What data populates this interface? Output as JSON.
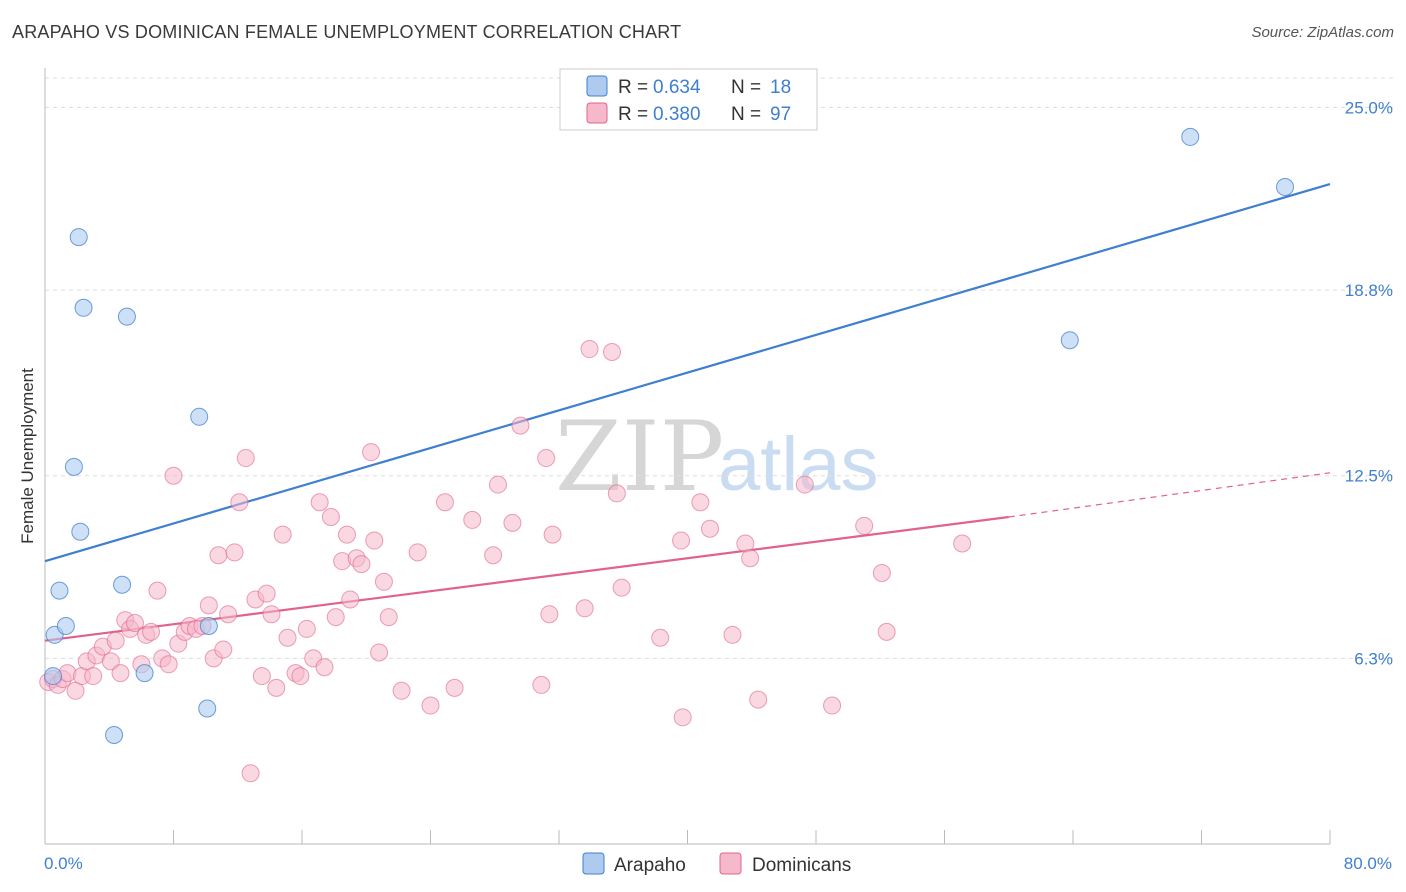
{
  "header": {
    "title": "ARAPAHO VS DOMINICAN FEMALE UNEMPLOYMENT CORRELATION CHART",
    "source": "Source: ZipAtlas.com"
  },
  "watermark": {
    "zip": "ZIP",
    "atlas": "atlas"
  },
  "legend": {
    "rows": [
      {
        "r_label": "R =",
        "r_value": "0.634",
        "n_label": "N =",
        "n_value": "18"
      },
      {
        "r_label": "R =",
        "r_value": "0.380",
        "n_label": "N =",
        "n_value": "97"
      }
    ]
  },
  "chart_data": {
    "type": "scatter",
    "title": "ARAPAHO VS DOMINICAN FEMALE UNEMPLOYMENT CORRELATION CHART",
    "xlabel": "",
    "ylabel": "Female Unemployment",
    "xlim": [
      0,
      80
    ],
    "ylim": [
      0,
      26
    ],
    "x_tick_labels": [
      "0.0%",
      "80.0%"
    ],
    "y_ticks": [
      6.3,
      12.5,
      18.8,
      25.0
    ],
    "y_tick_labels": [
      "6.3%",
      "12.5%",
      "18.8%",
      "25.0%"
    ],
    "colors": {
      "arapaho": "#3f7fd0",
      "arapaho_fill": "#aecbef",
      "dominicans": "#e0628d",
      "dominicans_fill": "#f6b8cb"
    },
    "series": [
      {
        "name": "Arapaho",
        "points": [
          [
            0.5,
            5.7
          ],
          [
            0.6,
            7.1
          ],
          [
            0.9,
            8.6
          ],
          [
            1.3,
            7.4
          ],
          [
            1.8,
            12.8
          ],
          [
            2.2,
            10.6
          ],
          [
            2.1,
            20.6
          ],
          [
            2.4,
            18.2
          ],
          [
            4.3,
            3.7
          ],
          [
            4.8,
            8.8
          ],
          [
            5.1,
            17.9
          ],
          [
            6.2,
            5.8
          ],
          [
            9.6,
            14.5
          ],
          [
            10.1,
            4.6
          ],
          [
            10.2,
            7.4
          ],
          [
            63.8,
            17.1
          ],
          [
            71.3,
            24.0
          ],
          [
            77.2,
            22.3
          ]
        ],
        "trend": {
          "x0": 0,
          "y0": 9.6,
          "x1": 80,
          "y1": 22.4
        }
      },
      {
        "name": "Dominicans",
        "points": [
          [
            0.2,
            5.5
          ],
          [
            0.5,
            5.6
          ],
          [
            0.8,
            5.4
          ],
          [
            1.1,
            5.6
          ],
          [
            1.4,
            5.8
          ],
          [
            1.9,
            5.2
          ],
          [
            2.3,
            5.7
          ],
          [
            2.6,
            6.2
          ],
          [
            3.0,
            5.7
          ],
          [
            3.2,
            6.4
          ],
          [
            3.6,
            6.7
          ],
          [
            4.1,
            6.2
          ],
          [
            4.4,
            6.9
          ],
          [
            4.7,
            5.8
          ],
          [
            5.0,
            7.6
          ],
          [
            5.3,
            7.3
          ],
          [
            5.6,
            7.5
          ],
          [
            6.0,
            6.1
          ],
          [
            6.3,
            7.1
          ],
          [
            6.6,
            7.2
          ],
          [
            7.0,
            8.6
          ],
          [
            7.3,
            6.3
          ],
          [
            7.7,
            6.1
          ],
          [
            8.0,
            12.5
          ],
          [
            8.3,
            6.8
          ],
          [
            8.7,
            7.2
          ],
          [
            9.0,
            7.4
          ],
          [
            9.4,
            7.3
          ],
          [
            9.8,
            7.4
          ],
          [
            10.2,
            8.1
          ],
          [
            10.5,
            6.3
          ],
          [
            10.8,
            9.8
          ],
          [
            11.1,
            6.6
          ],
          [
            11.4,
            7.8
          ],
          [
            11.8,
            9.9
          ],
          [
            12.1,
            11.6
          ],
          [
            12.5,
            13.1
          ],
          [
            12.8,
            2.4
          ],
          [
            13.1,
            8.3
          ],
          [
            13.5,
            5.7
          ],
          [
            13.8,
            8.5
          ],
          [
            14.1,
            7.8
          ],
          [
            14.4,
            5.3
          ],
          [
            14.8,
            10.5
          ],
          [
            15.1,
            7.0
          ],
          [
            15.6,
            5.8
          ],
          [
            15.9,
            5.7
          ],
          [
            16.3,
            7.3
          ],
          [
            16.7,
            6.3
          ],
          [
            17.1,
            11.6
          ],
          [
            17.4,
            6.0
          ],
          [
            17.8,
            11.1
          ],
          [
            18.1,
            7.7
          ],
          [
            18.5,
            9.6
          ],
          [
            18.8,
            10.5
          ],
          [
            19.0,
            8.3
          ],
          [
            19.4,
            9.7
          ],
          [
            19.7,
            9.5
          ],
          [
            20.3,
            13.3
          ],
          [
            20.5,
            10.3
          ],
          [
            20.8,
            6.5
          ],
          [
            21.1,
            8.9
          ],
          [
            21.4,
            7.7
          ],
          [
            22.2,
            5.2
          ],
          [
            23.2,
            9.9
          ],
          [
            24.0,
            4.7
          ],
          [
            24.9,
            11.6
          ],
          [
            25.5,
            5.3
          ],
          [
            26.6,
            11.0
          ],
          [
            27.9,
            9.8
          ],
          [
            28.2,
            12.2
          ],
          [
            29.1,
            10.9
          ],
          [
            29.6,
            14.2
          ],
          [
            30.9,
            5.4
          ],
          [
            31.2,
            13.1
          ],
          [
            31.6,
            10.5
          ],
          [
            31.4,
            7.8
          ],
          [
            33.6,
            8.0
          ],
          [
            33.9,
            16.8
          ],
          [
            35.3,
            16.7
          ],
          [
            35.6,
            11.9
          ],
          [
            35.9,
            8.7
          ],
          [
            38.3,
            7.0
          ],
          [
            39.6,
            10.3
          ],
          [
            39.7,
            4.3
          ],
          [
            40.8,
            11.6
          ],
          [
            41.4,
            10.7
          ],
          [
            42.8,
            7.1
          ],
          [
            43.6,
            10.2
          ],
          [
            43.9,
            9.7
          ],
          [
            44.4,
            4.9
          ],
          [
            47.3,
            12.2
          ],
          [
            49.0,
            4.7
          ],
          [
            51.0,
            10.8
          ],
          [
            52.1,
            9.2
          ],
          [
            52.4,
            7.2
          ],
          [
            57.1,
            10.2
          ]
        ],
        "trend": {
          "x0": 0,
          "y0": 6.9,
          "x1": 60,
          "y1": 11.1
        },
        "trend_extension": {
          "x0": 60,
          "y0": 11.1,
          "x1": 80,
          "y1": 12.6
        }
      }
    ]
  }
}
